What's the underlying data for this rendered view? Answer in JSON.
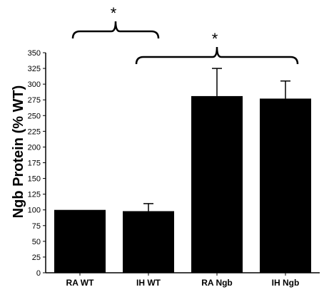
{
  "chart_data": {
    "type": "bar",
    "categories": [
      "RA WT",
      "IH WT",
      "RA Ngb",
      "IH Ngb"
    ],
    "values": [
      100,
      98,
      281,
      277
    ],
    "errors": [
      0,
      12,
      44,
      28
    ],
    "ylabel": "Ngb Protein (% WT)",
    "xlabel": "",
    "ylim": [
      0,
      350
    ],
    "yticks": [
      0,
      25,
      50,
      75,
      100,
      125,
      150,
      175,
      200,
      225,
      250,
      275,
      300,
      325,
      350
    ],
    "bar_color": "#000000",
    "significance": [
      {
        "from": 0,
        "to": 1,
        "label": "*"
      },
      {
        "from": 1,
        "to": 3,
        "label": "*"
      }
    ]
  }
}
